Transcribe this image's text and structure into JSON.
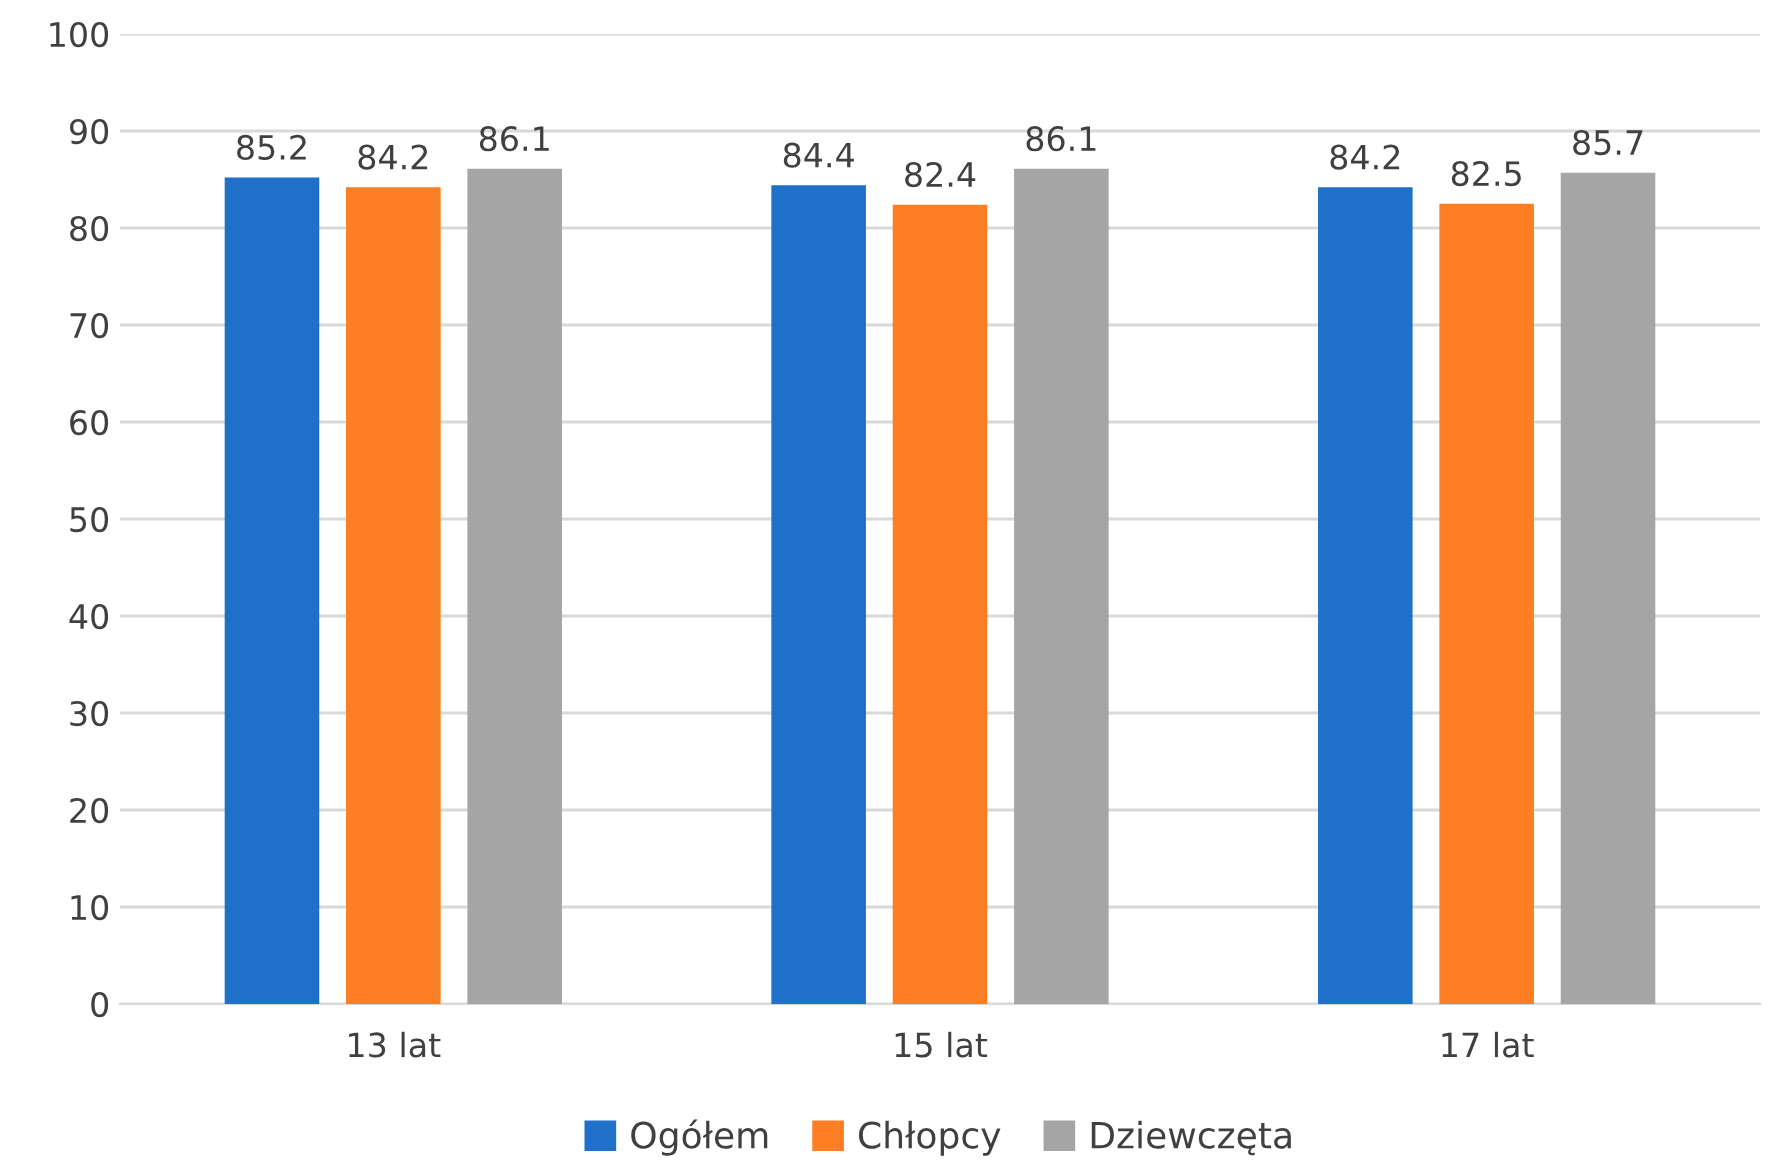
{
  "chart_data": {
    "type": "bar",
    "categories": [
      "13 lat",
      "15 lat",
      "17 lat"
    ],
    "series": [
      {
        "name": "Ogółem",
        "color": "#1f70c8",
        "values": [
          85.2,
          84.4,
          84.2
        ]
      },
      {
        "name": "Chłopcy",
        "color": "#fd7e23",
        "values": [
          84.2,
          82.4,
          82.5
        ]
      },
      {
        "name": "Dziewczęta",
        "color": "#a5a5a5",
        "values": [
          86.1,
          86.1,
          85.7
        ]
      }
    ],
    "ylim": [
      0,
      100
    ],
    "yticks": [
      0,
      10,
      20,
      30,
      40,
      50,
      60,
      70,
      80,
      90,
      100
    ],
    "grid": "y",
    "legend": "bottom",
    "data_labels": true
  }
}
